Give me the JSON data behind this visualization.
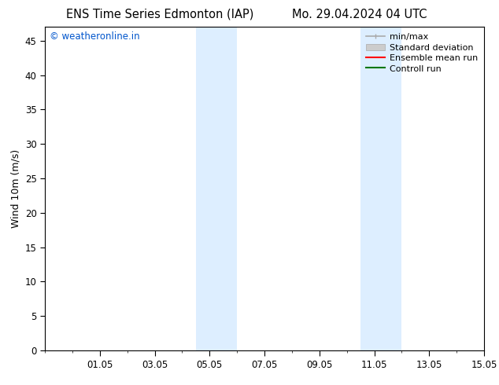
{
  "title_left": "ENS Time Series Edmonton (IAP)",
  "title_right": "Mo. 29.04.2024 04 UTC",
  "ylabel": "Wind 10m (m/s)",
  "xtick_labels": [
    "01.05",
    "03.05",
    "05.05",
    "07.05",
    "09.05",
    "11.05",
    "13.05",
    "15.05"
  ],
  "xtick_positions": [
    2,
    4,
    6,
    8,
    10,
    12,
    14,
    16
  ],
  "ylim": [
    0,
    47
  ],
  "ytick_positions": [
    0,
    5,
    10,
    15,
    20,
    25,
    30,
    35,
    40,
    45
  ],
  "shaded_bands": [
    {
      "x_start": 5.5,
      "x_end": 7.0
    },
    {
      "x_start": 11.5,
      "x_end": 13.0
    }
  ],
  "shaded_color": "#ddeeff",
  "background_color": "#ffffff",
  "plot_bg_color": "#ffffff",
  "watermark_text": "© weatheronline.in",
  "watermark_color": "#0055cc",
  "legend_items": [
    {
      "label": "min/max",
      "color": "#aaaaaa",
      "lw": 1.2,
      "style": "solid"
    },
    {
      "label": "Standard deviation",
      "color": "#cccccc",
      "lw": 7,
      "style": "solid"
    },
    {
      "label": "Ensemble mean run",
      "color": "#ff0000",
      "lw": 1.5,
      "style": "solid"
    },
    {
      "label": "Controll run",
      "color": "#007700",
      "lw": 1.5,
      "style": "solid"
    }
  ],
  "font_size_title": 10.5,
  "font_size_tick": 8.5,
  "font_size_legend": 8,
  "font_size_ylabel": 9,
  "font_size_watermark": 8.5
}
